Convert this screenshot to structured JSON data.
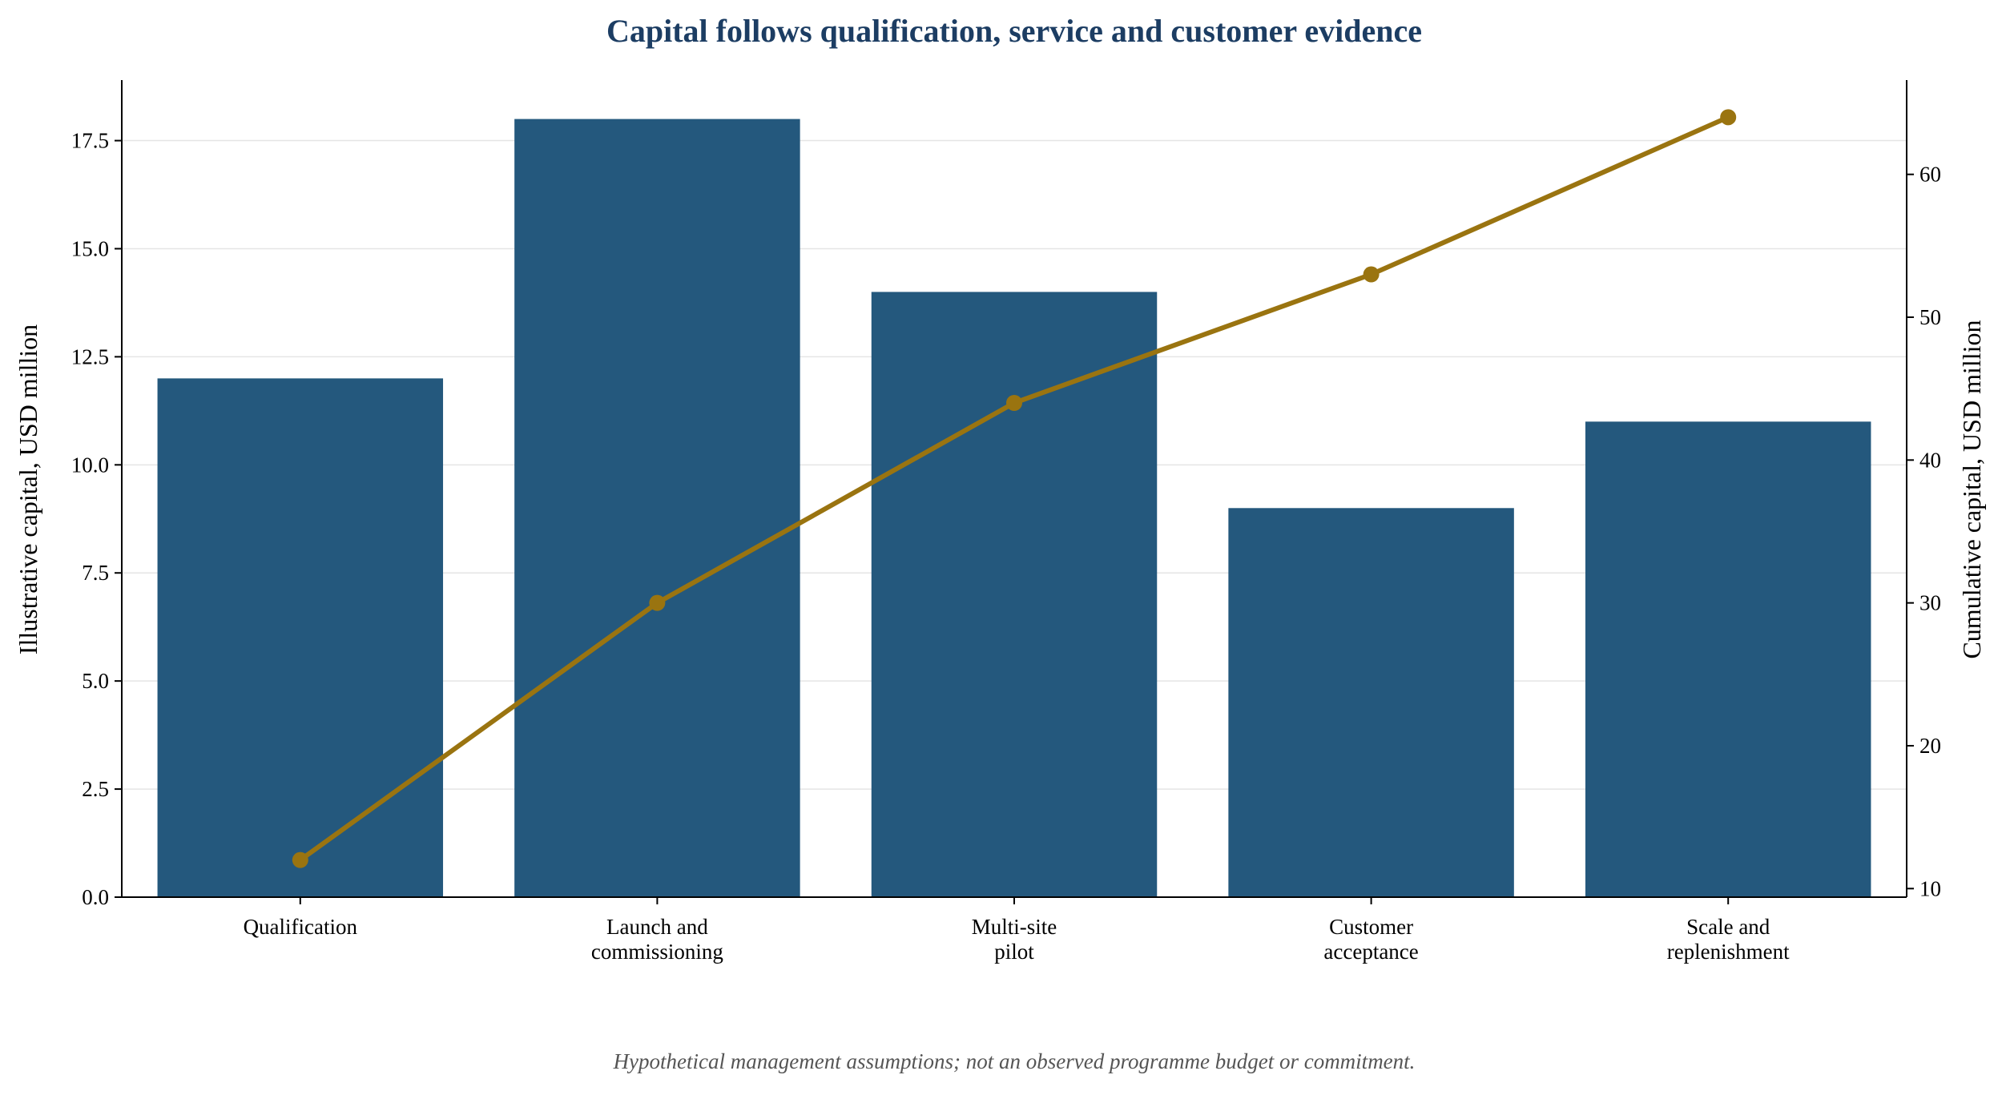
{
  "colors": {
    "bar": "#24587d",
    "line": "#9a7410",
    "title": "#1c3d63",
    "footnote": "#555555",
    "grid": "#e5e5e5",
    "axis": "#000000"
  },
  "footnote": "Hypothetical management assumptions; not an observed programme budget or commitment.",
  "chart_data": {
    "type": "bar",
    "title": "Capital follows qualification, service and customer evidence",
    "categories": [
      [
        "Qualification"
      ],
      [
        "Launch and",
        "commissioning"
      ],
      [
        "Multi-site",
        "pilot"
      ],
      [
        "Customer",
        "acceptance"
      ],
      [
        "Scale and",
        "replenishment"
      ]
    ],
    "series": [
      {
        "type": "bar",
        "axis": "left",
        "values": [
          12,
          18,
          14,
          9,
          11
        ]
      },
      {
        "type": "line",
        "axis": "right",
        "values": [
          12,
          30,
          44,
          53,
          64
        ]
      }
    ],
    "y_left": {
      "label": "Illustrative capital, USD million",
      "range": [
        0,
        18.9
      ],
      "ticks": [
        0,
        2.5,
        5,
        7.5,
        10,
        12.5,
        15,
        17.5
      ],
      "tick_labels": [
        "0.0",
        "2.5",
        "5.0",
        "7.5",
        "10.0",
        "12.5",
        "15.0",
        "17.5"
      ]
    },
    "y_right": {
      "label": "Cumulative capital, USD million",
      "range": [
        9.4,
        66.6
      ],
      "ticks": [
        10,
        20,
        30,
        40,
        50,
        60
      ],
      "tick_labels": [
        "10",
        "20",
        "30",
        "40",
        "50",
        "60"
      ]
    },
    "grid": true,
    "legend": "none"
  }
}
